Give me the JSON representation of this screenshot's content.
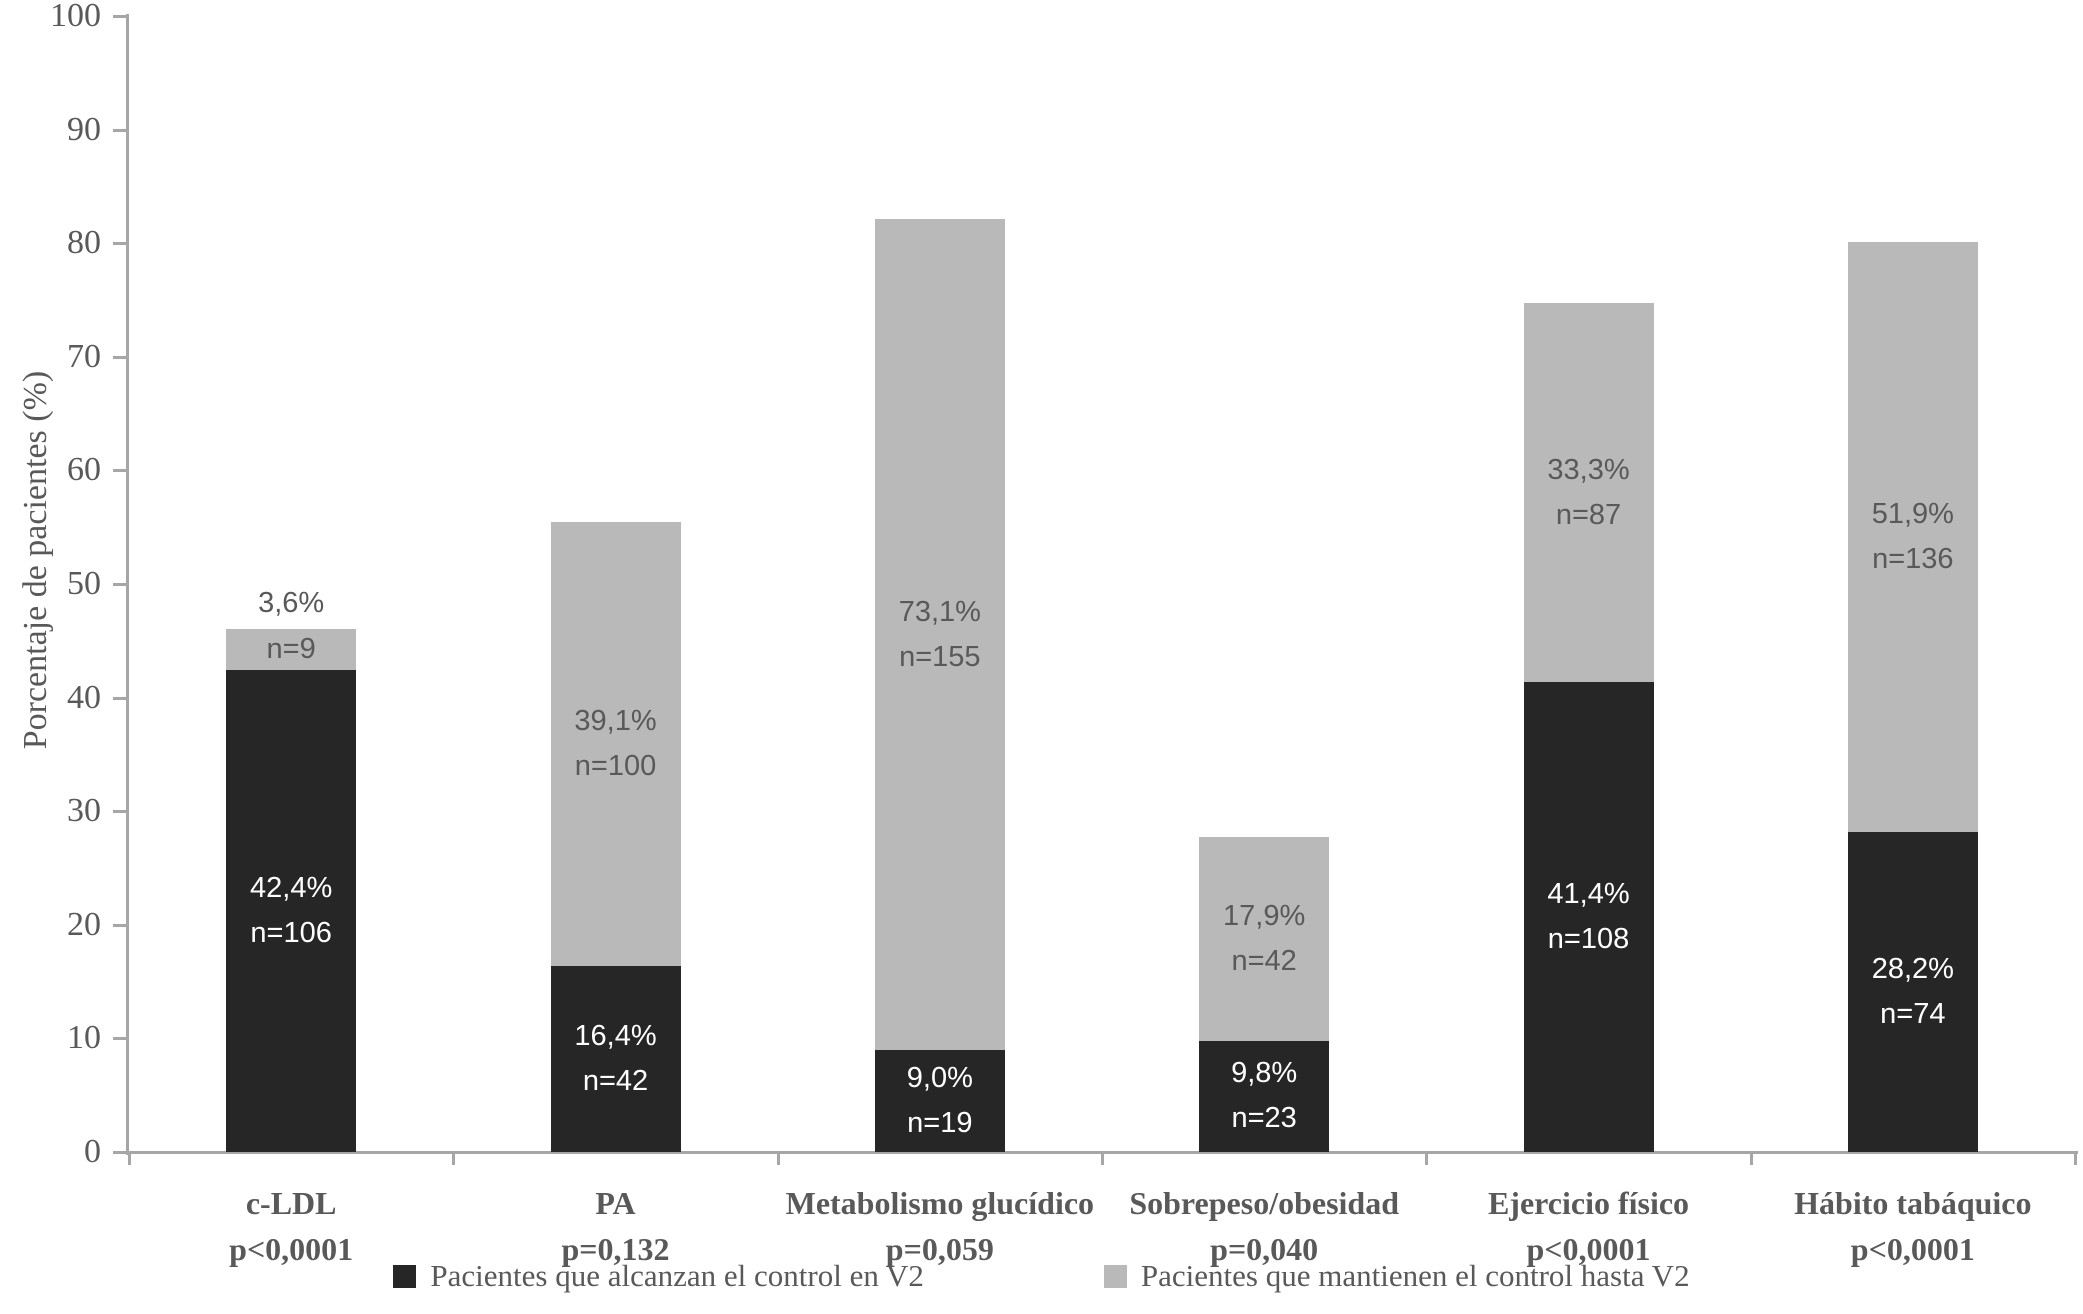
{
  "figure": {
    "colors": {
      "series_black": "#262626",
      "series_gray": "#b9b9b9",
      "axis": "#a6a6a6",
      "text_dark": "#595959",
      "text_on_black": "#ffffff"
    }
  },
  "chart_data": {
    "type": "bar",
    "stacked": true,
    "title": "",
    "xlabel": "",
    "ylabel": "Porcentaje de pacientes (%)",
    "ylim": [
      0,
      100
    ],
    "yticks": [
      0,
      10,
      20,
      30,
      40,
      50,
      60,
      70,
      80,
      90,
      100
    ],
    "grid": false,
    "legend_position": "bottom",
    "categories": [
      {
        "label": "c-LDL",
        "p_label": "p<0,0001"
      },
      {
        "label": "PA",
        "p_label": "p=0,132"
      },
      {
        "label": "Metabolismo glucídico",
        "p_label": "p=0,059"
      },
      {
        "label": "Sobrepeso/obesidad",
        "p_label": "p=0,040"
      },
      {
        "label": "Ejercicio físico",
        "p_label": "p<0,0001"
      },
      {
        "label": "Hábito tabáquico",
        "p_label": "p<0,0001"
      }
    ],
    "series": [
      {
        "name": "Pacientes que alcanzan el control en V2",
        "color": "#262626",
        "values": [
          42.4,
          16.4,
          9.0,
          9.8,
          41.4,
          28.2
        ],
        "pct_labels": [
          "42,4%",
          "16,4%",
          "9,0%",
          "9,8%",
          "41,4%",
          "28,2%"
        ],
        "n_labels": [
          "n=106",
          "n=42",
          "n=19",
          "n=23",
          "n=108",
          "n=74"
        ]
      },
      {
        "name": "Pacientes que mantienen el control hasta V2",
        "color": "#b9b9b9",
        "values": [
          3.6,
          39.1,
          73.1,
          17.9,
          33.3,
          51.9
        ],
        "pct_labels": [
          "3,6%",
          "39,1%",
          "73,1%",
          "17,9%",
          "33,3%",
          "51,9%"
        ],
        "n_labels": [
          "n=9",
          "n=100",
          "n=155",
          "n=42",
          "n=87",
          "n=136"
        ]
      }
    ]
  }
}
